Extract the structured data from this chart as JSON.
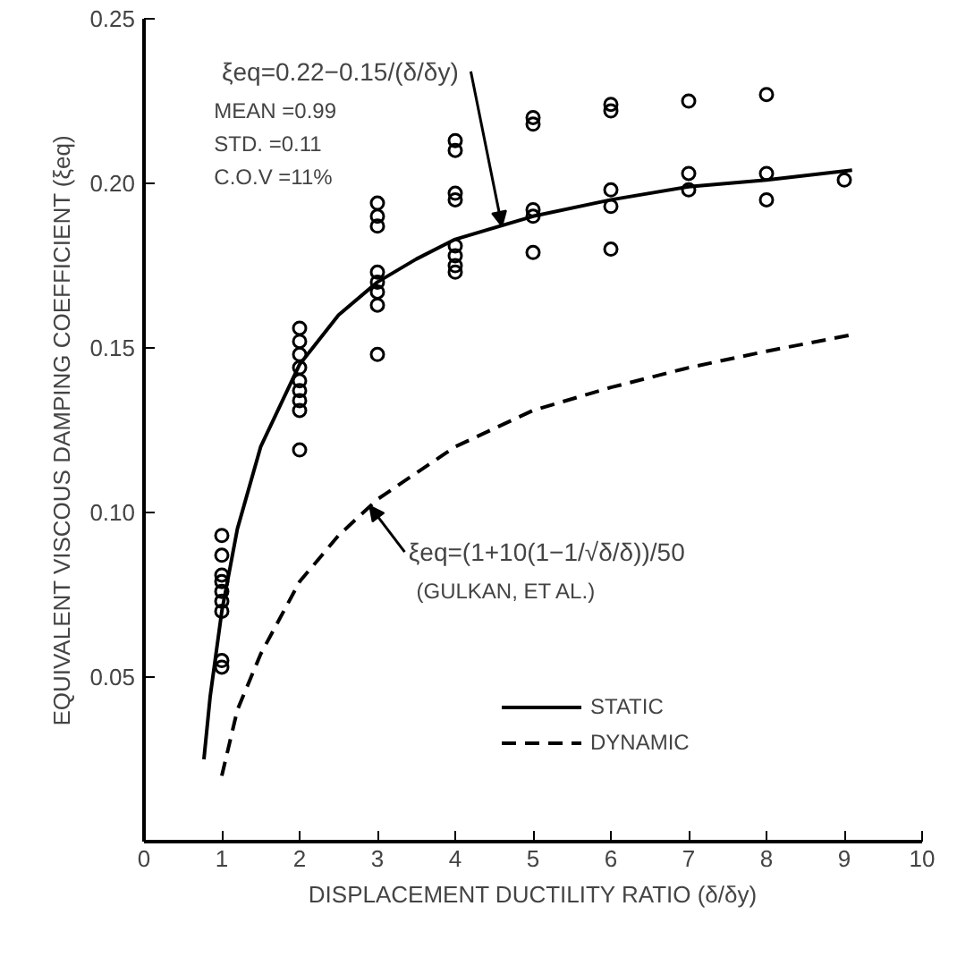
{
  "chart_data": {
    "type": "line",
    "xlabel": "DISPLACEMENT DUCTILITY RATIO (δ/δy)",
    "ylabel": "EQUIVALENT VISCOUS DAMPING COEFFICIENT (ξeq)",
    "xlim": [
      0,
      10
    ],
    "ylim": [
      0,
      0.25
    ],
    "xticks": [
      0,
      1,
      2,
      3,
      4,
      5,
      6,
      7,
      8,
      9,
      10
    ],
    "yticks": [
      {
        "value": 0.05,
        "label": "0.05"
      },
      {
        "value": 0.1,
        "label": "0.10"
      },
      {
        "value": 0.15,
        "label": "0.15"
      },
      {
        "value": 0.2,
        "label": "0.20"
      },
      {
        "value": 0.25,
        "label": "0.25"
      }
    ],
    "grid": false,
    "legend": "bottom right",
    "series": [
      {
        "name": "STATIC",
        "line_style": "solid",
        "color": "#000000",
        "x": [
          0.77,
          0.85,
          1,
          1.2,
          1.5,
          2,
          2.5,
          3,
          3.5,
          4,
          5,
          6,
          7,
          8,
          9.1
        ],
        "values": [
          0.025,
          0.044,
          0.07,
          0.095,
          0.12,
          0.145,
          0.16,
          0.17,
          0.177,
          0.183,
          0.19,
          0.195,
          0.199,
          0.201,
          0.204
        ]
      },
      {
        "name": "DYNAMIC",
        "line_style": "dashed",
        "color": "#000000",
        "x": [
          1,
          1.2,
          1.5,
          2,
          2.5,
          3,
          4,
          5,
          6,
          7,
          8,
          9.1
        ],
        "values": [
          0.02,
          0.04,
          0.057,
          0.079,
          0.093,
          0.104,
          0.12,
          0.131,
          0.138,
          0.144,
          0.149,
          0.154
        ]
      },
      {
        "type": "scatter",
        "marker": "circle",
        "color": "#000000",
        "x": [
          1,
          1,
          1,
          1,
          1,
          1,
          1,
          1,
          1,
          2,
          2,
          2,
          2,
          2,
          2,
          2,
          2,
          2,
          3,
          3,
          3,
          3,
          3,
          3,
          3,
          3,
          4,
          4,
          4,
          4,
          4,
          4,
          4,
          4,
          5,
          5,
          5,
          5,
          5,
          6,
          6,
          6,
          6,
          6,
          7,
          7,
          7,
          8,
          8,
          8,
          9
        ],
        "values": [
          0.093,
          0.087,
          0.081,
          0.079,
          0.076,
          0.073,
          0.07,
          0.055,
          0.053,
          0.156,
          0.152,
          0.148,
          0.144,
          0.14,
          0.137,
          0.134,
          0.131,
          0.119,
          0.194,
          0.19,
          0.187,
          0.173,
          0.17,
          0.167,
          0.163,
          0.148,
          0.213,
          0.21,
          0.197,
          0.195,
          0.181,
          0.178,
          0.175,
          0.173,
          0.22,
          0.218,
          0.192,
          0.19,
          0.179,
          0.224,
          0.222,
          0.198,
          0.193,
          0.18,
          0.225,
          0.203,
          0.198,
          0.227,
          0.203,
          0.195,
          0.201
        ]
      }
    ],
    "annotations": [
      {
        "text": "ξeq=0.22−0.15/(δ/δy)",
        "x": 4.6,
        "y": 0.187
      },
      "MEAN =0.99",
      "STD. =0.11",
      "C.O.V =11%",
      {
        "text": "ξeq=(1+10(1−1/√δ/δ))/50",
        "x": 2.9,
        "y": 0.102
      },
      "(GULKAN, ET AL.)"
    ]
  }
}
